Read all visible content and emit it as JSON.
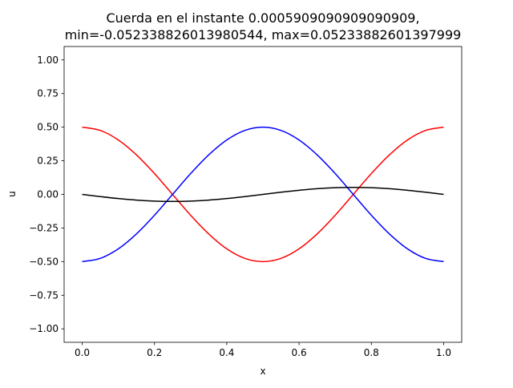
{
  "chart_data": {
    "type": "line",
    "title_line1": "Cuerda en el instante 0.0005909090909090909,",
    "title_line2": "min=-0.05233882601398054​4, max=0.05233882601397999",
    "xlabel": "x",
    "ylabel": "u",
    "xlim": [
      -0.05,
      1.05
    ],
    "ylim": [
      -1.1,
      1.1
    ],
    "xticks": [
      0.0,
      0.2,
      0.4,
      0.6,
      0.8,
      1.0
    ],
    "xtick_labels": [
      "0.0",
      "0.2",
      "0.4",
      "0.6",
      "0.8",
      "1.0"
    ],
    "yticks": [
      -1.0,
      -0.75,
      -0.5,
      -0.25,
      0.0,
      0.25,
      0.5,
      0.75,
      1.0
    ],
    "ytick_labels": [
      "−1.00",
      "−0.75",
      "−0.50",
      "−0.25",
      "0.00",
      "0.25",
      "0.50",
      "0.75",
      "1.00"
    ],
    "grid": false,
    "x": [
      0.0,
      0.05,
      0.1,
      0.15,
      0.2,
      0.25,
      0.3,
      0.35,
      0.4,
      0.45,
      0.5,
      0.55,
      0.6,
      0.65,
      0.7,
      0.75,
      0.8,
      0.85,
      0.9,
      0.95,
      1.0
    ],
    "series": [
      {
        "color": "#ff0000",
        "values": [
          0.5,
          0.476,
          0.405,
          0.294,
          0.155,
          0.0,
          -0.155,
          -0.294,
          -0.405,
          -0.476,
          -0.5,
          -0.476,
          -0.405,
          -0.294,
          -0.155,
          0.0,
          0.155,
          0.294,
          0.405,
          0.476,
          0.5
        ]
      },
      {
        "color": "#0000ff",
        "values": [
          -0.5,
          -0.476,
          -0.405,
          -0.294,
          -0.155,
          0.0,
          0.155,
          0.294,
          0.405,
          0.476,
          0.5,
          0.476,
          0.405,
          0.294,
          0.155,
          0.0,
          -0.155,
          -0.294,
          -0.405,
          -0.476,
          -0.5
        ]
      },
      {
        "color": "#000000",
        "values": [
          0.0,
          -0.0162,
          -0.0308,
          -0.0423,
          -0.0498,
          -0.0523,
          -0.0498,
          -0.0423,
          -0.0308,
          -0.0162,
          0.0,
          0.0162,
          0.0308,
          0.0423,
          0.0498,
          0.0523,
          0.0498,
          0.0423,
          0.0308,
          0.0162,
          0.0
        ]
      }
    ]
  }
}
